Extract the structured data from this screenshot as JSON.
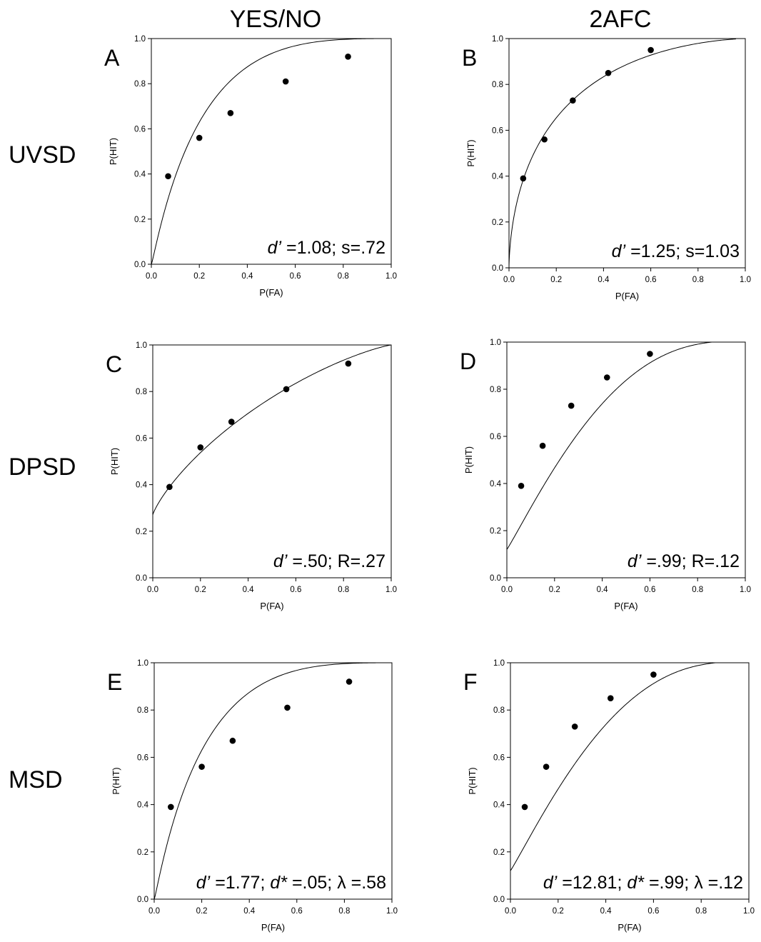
{
  "column_titles": [
    "YES/NO",
    "2AFC"
  ],
  "row_titles": [
    "UVSD",
    "DPSD",
    "MSD"
  ],
  "chart_data": [
    {
      "type": "line",
      "panel": "A",
      "model": "UVSD",
      "task": "YES/NO",
      "xlabel": "P(FA)",
      "ylabel": "P(HIT)",
      "xlim": [
        0,
        1
      ],
      "ylim": [
        0,
        1
      ],
      "ticks": [
        "0.0",
        "0.2",
        "0.4",
        "0.6",
        "0.8",
        "1.0"
      ],
      "annotation": [
        {
          "t": "d’",
          "i": true
        },
        {
          "t": " =1.08; s=.72"
        }
      ],
      "points": {
        "x": [
          0.07,
          0.2,
          0.33,
          0.56,
          0.82
        ],
        "y": [
          0.39,
          0.56,
          0.67,
          0.81,
          0.92
        ]
      },
      "curve": {
        "kind": "uvsd",
        "d": 1.08,
        "s": 0.72
      }
    },
    {
      "type": "line",
      "panel": "B",
      "model": "UVSD",
      "task": "2AFC",
      "xlabel": "P(FA)",
      "ylabel": "P(HIT)",
      "xlim": [
        0,
        1
      ],
      "ylim": [
        0,
        1
      ],
      "ticks": [
        "0.0",
        "0.2",
        "0.4",
        "0.6",
        "0.8",
        "1.0"
      ],
      "annotation": [
        {
          "t": "d’",
          "i": true
        },
        {
          "t": " =1.25; s=1.03"
        }
      ],
      "points": {
        "x": [
          0.06,
          0.15,
          0.27,
          0.42,
          0.6
        ],
        "y": [
          0.39,
          0.56,
          0.73,
          0.85,
          0.95
        ]
      },
      "curve": {
        "kind": "uvsd",
        "d": 1.25,
        "s": 1.03,
        "xmax": 0.96
      }
    },
    {
      "type": "line",
      "panel": "C",
      "model": "DPSD",
      "task": "YES/NO",
      "xlabel": "P(FA)",
      "ylabel": "P(HIT)",
      "xlim": [
        0,
        1
      ],
      "ylim": [
        0,
        1
      ],
      "ticks": [
        "0.0",
        "0.2",
        "0.4",
        "0.6",
        "0.8",
        "1.0"
      ],
      "annotation": [
        {
          "t": "d’",
          "i": true
        },
        {
          "t": " =.50; R=.27"
        }
      ],
      "points": {
        "x": [
          0.07,
          0.2,
          0.33,
          0.56,
          0.82
        ],
        "y": [
          0.39,
          0.56,
          0.67,
          0.81,
          0.92
        ]
      },
      "curve": {
        "kind": "dpsd",
        "d": 0.5,
        "R": 0.27
      }
    },
    {
      "type": "line",
      "panel": "D",
      "model": "DPSD",
      "task": "2AFC",
      "xlabel": "P(FA)",
      "ylabel": "P(HIT)",
      "xlim": [
        0,
        1
      ],
      "ylim": [
        0,
        1
      ],
      "ticks": [
        "0.0",
        "0.2",
        "0.4",
        "0.6",
        "0.8",
        "1.0"
      ],
      "annotation": [
        {
          "t": "d’",
          "i": true
        },
        {
          "t": " =.99; R=.12"
        }
      ],
      "points": {
        "x": [
          0.06,
          0.15,
          0.27,
          0.42,
          0.6
        ],
        "y": [
          0.39,
          0.56,
          0.73,
          0.85,
          0.95
        ]
      },
      "curve": {
        "kind": "dpsd2",
        "d": 0.99,
        "R": 0.12,
        "xmax": 0.86
      }
    },
    {
      "type": "line",
      "panel": "E",
      "model": "MSD",
      "task": "YES/NO",
      "xlabel": "P(FA)",
      "ylabel": "P(HIT)",
      "xlim": [
        0,
        1
      ],
      "ylim": [
        0,
        1
      ],
      "ticks": [
        "0.0",
        "0.2",
        "0.4",
        "0.6",
        "0.8",
        "1.0"
      ],
      "annotation": [
        {
          "t": "d’",
          "i": true
        },
        {
          "t": " =1.77; "
        },
        {
          "t": "d*",
          "i": true
        },
        {
          "t": " =.05; λ =.58"
        }
      ],
      "points": {
        "x": [
          0.07,
          0.2,
          0.33,
          0.56,
          0.82
        ],
        "y": [
          0.39,
          0.56,
          0.67,
          0.81,
          0.92
        ]
      },
      "curve": {
        "kind": "uvsd",
        "d": 1.08,
        "s": 0.72
      }
    },
    {
      "type": "line",
      "panel": "F",
      "model": "MSD",
      "task": "2AFC",
      "xlabel": "P(FA)",
      "ylabel": "P(HIT)",
      "xlim": [
        0,
        1
      ],
      "ylim": [
        0,
        1
      ],
      "ticks": [
        "0.0",
        "0.2",
        "0.4",
        "0.6",
        "0.8",
        "1.0"
      ],
      "annotation": [
        {
          "t": "d’",
          "i": true
        },
        {
          "t": " =12.81; "
        },
        {
          "t": "d*",
          "i": true
        },
        {
          "t": " =.99; λ =.12"
        }
      ],
      "points": {
        "x": [
          0.06,
          0.15,
          0.27,
          0.42,
          0.6
        ],
        "y": [
          0.39,
          0.56,
          0.73,
          0.85,
          0.95
        ]
      },
      "curve": {
        "kind": "dpsd2",
        "d": 0.99,
        "R": 0.12,
        "xmax": 0.86
      }
    }
  ]
}
